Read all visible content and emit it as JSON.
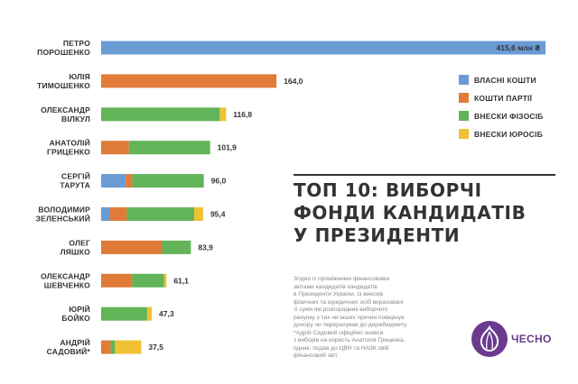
{
  "chart_data": {
    "type": "bar",
    "orientation": "horizontal",
    "stacked": true,
    "title": "ТОП 10: ВИБОРЧІ ФОНДИ КАНДИДАТІВ У ПРЕЗИДЕНТИ",
    "unit_label": "415,6 млн ₴",
    "xlim": [
      0,
      415.6
    ],
    "grid": false,
    "legend_position": "right",
    "categories": [
      [
        "ПЕТРО",
        "ПОРОШЕНКО"
      ],
      [
        "ЮЛІЯ",
        "ТИМОШЕНКО"
      ],
      [
        "ОЛЕКСАНДР",
        "ВІЛКУЛ"
      ],
      [
        "АНАТОЛІЙ",
        "ГРИЦЕНКО"
      ],
      [
        "СЕРГІЙ",
        "ТАРУТА"
      ],
      [
        "ВОЛОДИМИР",
        "ЗЕЛЕНСЬКИЙ"
      ],
      [
        "ОЛЕГ",
        "ЛЯШКО"
      ],
      [
        "ОЛЕКСАНДР",
        "ШЕВЧЕНКО"
      ],
      [
        "ЮРІЙ",
        "БОЙКО"
      ],
      [
        "АНДРІЙ",
        "САДОВИЙ*"
      ]
    ],
    "totals": [
      "415,6",
      "164,0",
      "116,8",
      "101,9",
      "96,0",
      "95,4",
      "83,9",
      "61,1",
      "47,3",
      "37,5"
    ],
    "series": [
      {
        "name": "ВЛАСНІ КОШТИ",
        "color": "#6a9bd4",
        "values": [
          415.6,
          0,
          0,
          0,
          23,
          8,
          0,
          0,
          0,
          0
        ]
      },
      {
        "name": "КОШТИ ПАРТІЇ",
        "color": "#e07b39",
        "values": [
          0,
          164.0,
          0,
          26,
          6,
          16,
          57,
          29,
          0,
          9
        ]
      },
      {
        "name": "ВНЕСКИ ФІЗОСІБ",
        "color": "#63b459",
        "values": [
          0,
          0,
          111,
          75.9,
          67,
          63,
          26.9,
          30,
          43,
          4
        ]
      },
      {
        "name": "ВНЕСКИ ЮРОСІБ",
        "color": "#f0c132",
        "values": [
          0,
          0,
          5.8,
          0,
          0,
          8.4,
          0,
          2.1,
          4.3,
          24.5
        ]
      }
    ]
  },
  "note": {
    "lines": [
      "Згідно із проміжними фінансовими",
      "звітами кандидатів кандидатів",
      "в Президенти України. Із внесків",
      "фізичних та юридичних осіб вираховані",
      "ті суми які розпорядник виборчого",
      "рахунку з тих чи інших причин повернув",
      "донору чи перерахував до держбюджету.",
      "*Адрій Садовий офіційно знявся",
      "з виборів на користь Анатолія Гриценка,",
      "однак, подав до ЦВН та НАЗК свій",
      "фінансовий звіт."
    ]
  },
  "logo": {
    "text": "ЧЕСНО",
    "icon": "garlic-icon",
    "color": "#6b3a8f"
  }
}
